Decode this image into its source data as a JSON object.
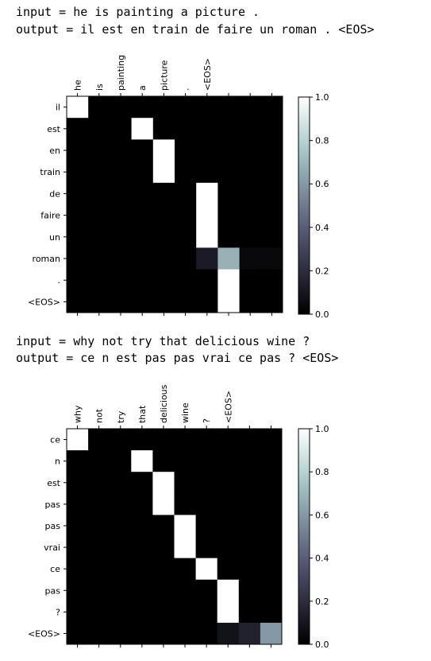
{
  "cells": [
    {
      "input_line": "input = he is painting a picture .",
      "output_line": "output = il est en train de faire un roman . <EOS>"
    },
    {
      "input_line": "input = why not try that delicious wine ?",
      "output_line": "output = ce n est pas pas vrai ce pas ? <EOS>"
    }
  ],
  "colormap": {
    "name": "bone",
    "low": "#000000",
    "high": "#ffffff"
  },
  "chart_data": [
    {
      "type": "heatmap",
      "title": "",
      "x_tick_labels": [
        "he",
        "is",
        "painting",
        "a",
        "picture",
        ".",
        "<EOS>"
      ],
      "y_tick_labels": [
        "il",
        "est",
        "en",
        "train",
        "de",
        "faire",
        "un",
        "roman",
        ".",
        "<EOS>"
      ],
      "colorbar": {
        "range": [
          0.0,
          1.0
        ],
        "ticks": [
          "0.0",
          "0.2",
          "0.4",
          "0.6",
          "0.8",
          "1.0"
        ]
      },
      "values": [
        [
          1,
          0,
          0,
          0,
          0,
          0,
          0,
          0,
          0,
          0
        ],
        [
          0,
          0,
          0,
          1,
          0,
          0,
          0,
          0,
          0,
          0
        ],
        [
          0,
          0,
          0,
          0,
          1,
          0,
          0,
          0,
          0,
          0
        ],
        [
          0,
          0,
          0,
          0,
          1,
          0,
          0,
          0,
          0,
          0
        ],
        [
          0,
          0,
          0,
          0,
          0,
          0,
          1,
          0,
          0,
          0
        ],
        [
          0,
          0,
          0,
          0,
          0,
          0,
          1,
          0,
          0,
          0
        ],
        [
          0,
          0,
          0,
          0,
          0,
          0,
          1,
          0,
          0,
          0
        ],
        [
          0,
          0,
          0,
          0,
          0,
          0,
          0.12,
          0.68,
          0.04,
          0.04
        ],
        [
          0,
          0,
          0,
          0,
          0,
          0,
          0,
          1,
          0,
          0
        ],
        [
          0,
          0,
          0,
          0,
          0,
          0,
          0,
          1,
          0,
          0
        ]
      ]
    },
    {
      "type": "heatmap",
      "title": "",
      "x_tick_labels": [
        "why",
        "not",
        "try",
        "that",
        "delicious",
        "wine",
        "?",
        "<EOS>"
      ],
      "y_tick_labels": [
        "ce",
        "n",
        "est",
        "pas",
        "pas",
        "vrai",
        "ce",
        "pas",
        "?",
        "<EOS>"
      ],
      "colorbar": {
        "range": [
          0.0,
          1.0
        ],
        "ticks": [
          "0.0",
          "0.2",
          "0.4",
          "0.6",
          "0.8",
          "1.0"
        ]
      },
      "values": [
        [
          1,
          0,
          0,
          0,
          0,
          0,
          0,
          0,
          0,
          0
        ],
        [
          0,
          0,
          0,
          1,
          0,
          0,
          0,
          0,
          0,
          0
        ],
        [
          0,
          0,
          0,
          0,
          1,
          0,
          0,
          0,
          0,
          0
        ],
        [
          0,
          0,
          0,
          0,
          1,
          0,
          0,
          0,
          0,
          0
        ],
        [
          0,
          0,
          0,
          0,
          0,
          1,
          0,
          0,
          0,
          0
        ],
        [
          0,
          0,
          0,
          0,
          0,
          1,
          0,
          0,
          0,
          0
        ],
        [
          0,
          0,
          0,
          0,
          0,
          0,
          1,
          0,
          0,
          0
        ],
        [
          0,
          0,
          0,
          0,
          0,
          0,
          0,
          1,
          0,
          0
        ],
        [
          0,
          0,
          0,
          0,
          0,
          0,
          0,
          1,
          0,
          0
        ],
        [
          0,
          0,
          0,
          0,
          0,
          0,
          0,
          0.08,
          0.15,
          0.6
        ]
      ]
    }
  ]
}
